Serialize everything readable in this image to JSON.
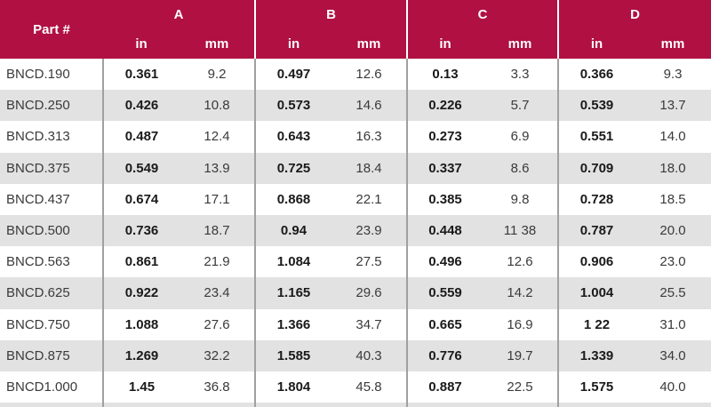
{
  "header": {
    "part_label": "Part #",
    "groups": [
      "A",
      "B",
      "C",
      "D"
    ],
    "unit_in": "in",
    "unit_mm": "mm"
  },
  "colors": {
    "header_bg": "#B01042",
    "header_text": "#FFFFFF",
    "row_alt_bg": "#E2E2E2",
    "body_separator": "#A0A0A0",
    "text": "#3A3A3A",
    "bold_text": "#1A1A1A"
  },
  "chart_data": {
    "type": "table",
    "column_groups": [
      "A",
      "B",
      "C",
      "D"
    ],
    "columns": [
      "Part #",
      "A in",
      "A mm",
      "B in",
      "B mm",
      "C in",
      "C mm",
      "D in",
      "D mm"
    ],
    "rows": [
      [
        "BNCD.190",
        "0.361",
        "9.2",
        "0.497",
        "12.6",
        "0.13",
        "3.3",
        "0.366",
        "9.3"
      ],
      [
        "BNCD.250",
        "0.426",
        "10.8",
        "0.573",
        "14.6",
        "0.226",
        "5.7",
        "0.539",
        "13.7"
      ],
      [
        "BNCD.313",
        "0.487",
        "12.4",
        "0.643",
        "16.3",
        "0.273",
        "6.9",
        "0.551",
        "14.0"
      ],
      [
        "BNCD.375",
        "0.549",
        "13.9",
        "0.725",
        "18.4",
        "0.337",
        "8.6",
        "0.709",
        "18.0"
      ],
      [
        "BNCD.437",
        "0.674",
        "17.1",
        "0.868",
        "22.1",
        "0.385",
        "9.8",
        "0.728",
        "18.5"
      ],
      [
        "BNCD.500",
        "0.736",
        "18.7",
        "0.94",
        "23.9",
        "0.448",
        "11 38",
        "0.787",
        "20.0"
      ],
      [
        "BNCD.563",
        "0.861",
        "21.9",
        "1.084",
        "27.5",
        "0.496",
        "12.6",
        "0.906",
        "23.0"
      ],
      [
        "BNCD.625",
        "0.922",
        "23.4",
        "1.165",
        "29.6",
        "0.559",
        "14.2",
        "1.004",
        "25.5"
      ],
      [
        "BNCD.750",
        "1.088",
        "27.6",
        "1.366",
        "34.7",
        "0.665",
        "16.9",
        "1 22",
        "31.0"
      ],
      [
        "BNCD.875",
        "1.269",
        "32.2",
        "1.585",
        "40.3",
        "0.776",
        "19.7",
        "1.339",
        "34.0"
      ],
      [
        "BNCD1.000",
        "1.45",
        "36.8",
        "1.804",
        "45.8",
        "0.887",
        "22.5",
        "1.575",
        "40.0"
      ]
    ]
  }
}
